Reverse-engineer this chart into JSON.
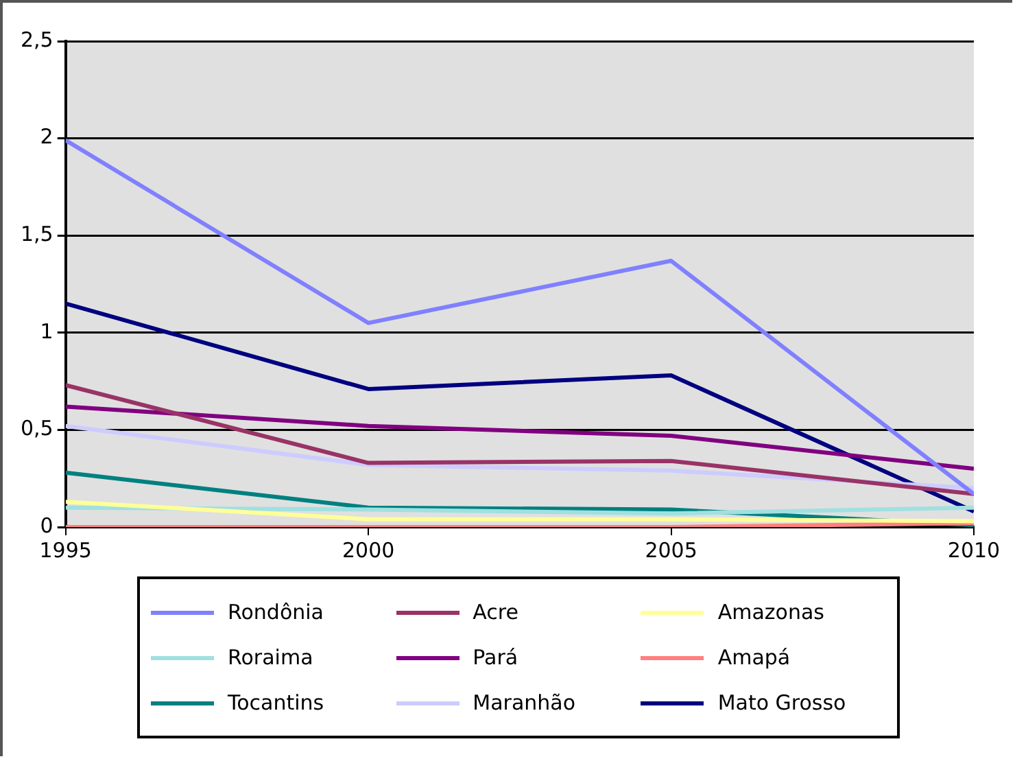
{
  "chart_data": {
    "type": "line",
    "x": [
      1995,
      2000,
      2005,
      2010
    ],
    "xlim": [
      1995,
      2010
    ],
    "xticks": [
      1995,
      2000,
      2005,
      2010
    ],
    "ylim": [
      0,
      2.5
    ],
    "yticks": [
      {
        "value": 0,
        "label": "0"
      },
      {
        "value": 0.5,
        "label": "0,5"
      },
      {
        "value": 1,
        "label": "1"
      },
      {
        "value": 1.5,
        "label": "1,5"
      },
      {
        "value": 2,
        "label": "2"
      },
      {
        "value": 2.5,
        "label": "2,5"
      }
    ],
    "grid": "y",
    "legend": "bottom",
    "marker": "none",
    "line_style": "solid",
    "series": [
      {
        "name": "Rondônia",
        "color": "#8080ff",
        "values": [
          1.99,
          1.05,
          1.37,
          0.17
        ]
      },
      {
        "name": "Acre",
        "color": "#993366",
        "values": [
          0.73,
          0.33,
          0.34,
          0.17
        ]
      },
      {
        "name": "Amazonas",
        "color": "#ffff99",
        "values": [
          0.13,
          0.04,
          0.04,
          0.03
        ]
      },
      {
        "name": "Roraima",
        "color": "#a0e0e0",
        "values": [
          0.1,
          0.09,
          0.07,
          0.1
        ]
      },
      {
        "name": "Pará",
        "color": "#800080",
        "values": [
          0.62,
          0.52,
          0.47,
          0.3
        ]
      },
      {
        "name": "Amapá",
        "color": "#ff8080",
        "values": [
          0.0,
          0.0,
          0.0,
          0.02
        ]
      },
      {
        "name": "Tocantins",
        "color": "#008080",
        "values": [
          0.28,
          0.1,
          0.09,
          0.01
        ]
      },
      {
        "name": "Maranhão",
        "color": "#ccccff",
        "values": [
          0.52,
          0.32,
          0.29,
          0.2
        ]
      },
      {
        "name": "Mato Grosso",
        "color": "#000080",
        "values": [
          1.15,
          0.71,
          0.78,
          0.08
        ]
      }
    ]
  }
}
